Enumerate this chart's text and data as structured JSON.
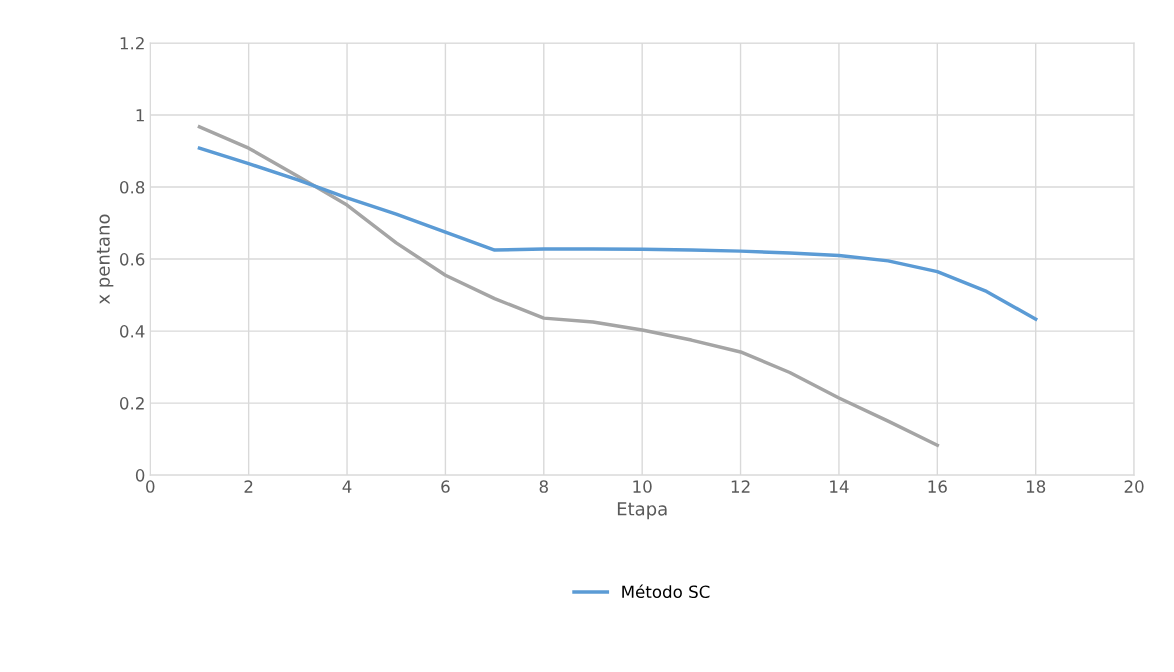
{
  "chart_data": {
    "type": "line",
    "xlabel": "Etapa",
    "ylabel": "x pentano",
    "xlim": [
      0,
      20
    ],
    "xticks": [
      0,
      2,
      4,
      6,
      8,
      10,
      12,
      14,
      16,
      18,
      20
    ],
    "ylim": [
      0,
      1.2
    ],
    "yticks": [
      0,
      {
        "value": 0.2,
        "label": "0.2"
      },
      {
        "value": 0.4,
        "label": "0.4"
      },
      {
        "value": 0.6,
        "label": "0.6"
      },
      {
        "value": 0.8,
        "label": "0.8"
      },
      1,
      {
        "value": 1.2,
        "label": "1.2"
      }
    ],
    "grid": true,
    "legend": "bottom",
    "marker": "none",
    "line_style": "solid",
    "series": [
      {
        "color": "#a5a5a5",
        "x": [
          1,
          2,
          3,
          4,
          5,
          6,
          7,
          8,
          9,
          10,
          11,
          12,
          13,
          14,
          15,
          16
        ],
        "values": [
          0.967,
          0.908,
          0.83,
          0.75,
          0.645,
          0.555,
          0.49,
          0.436,
          0.425,
          0.403,
          0.375,
          0.342,
          0.285,
          0.214,
          0.15,
          0.083
        ]
      },
      {
        "name": "Método SC",
        "color": "#5b9bd5",
        "x": [
          1,
          2,
          3,
          4,
          5,
          6,
          7,
          8,
          9,
          10,
          11,
          12,
          13,
          14,
          15,
          16,
          17,
          18
        ],
        "values": [
          0.908,
          0.865,
          0.82,
          0.77,
          0.725,
          0.675,
          0.625,
          0.628,
          0.628,
          0.627,
          0.625,
          0.622,
          0.617,
          0.61,
          0.595,
          0.565,
          0.51,
          0.433
        ]
      }
    ]
  }
}
